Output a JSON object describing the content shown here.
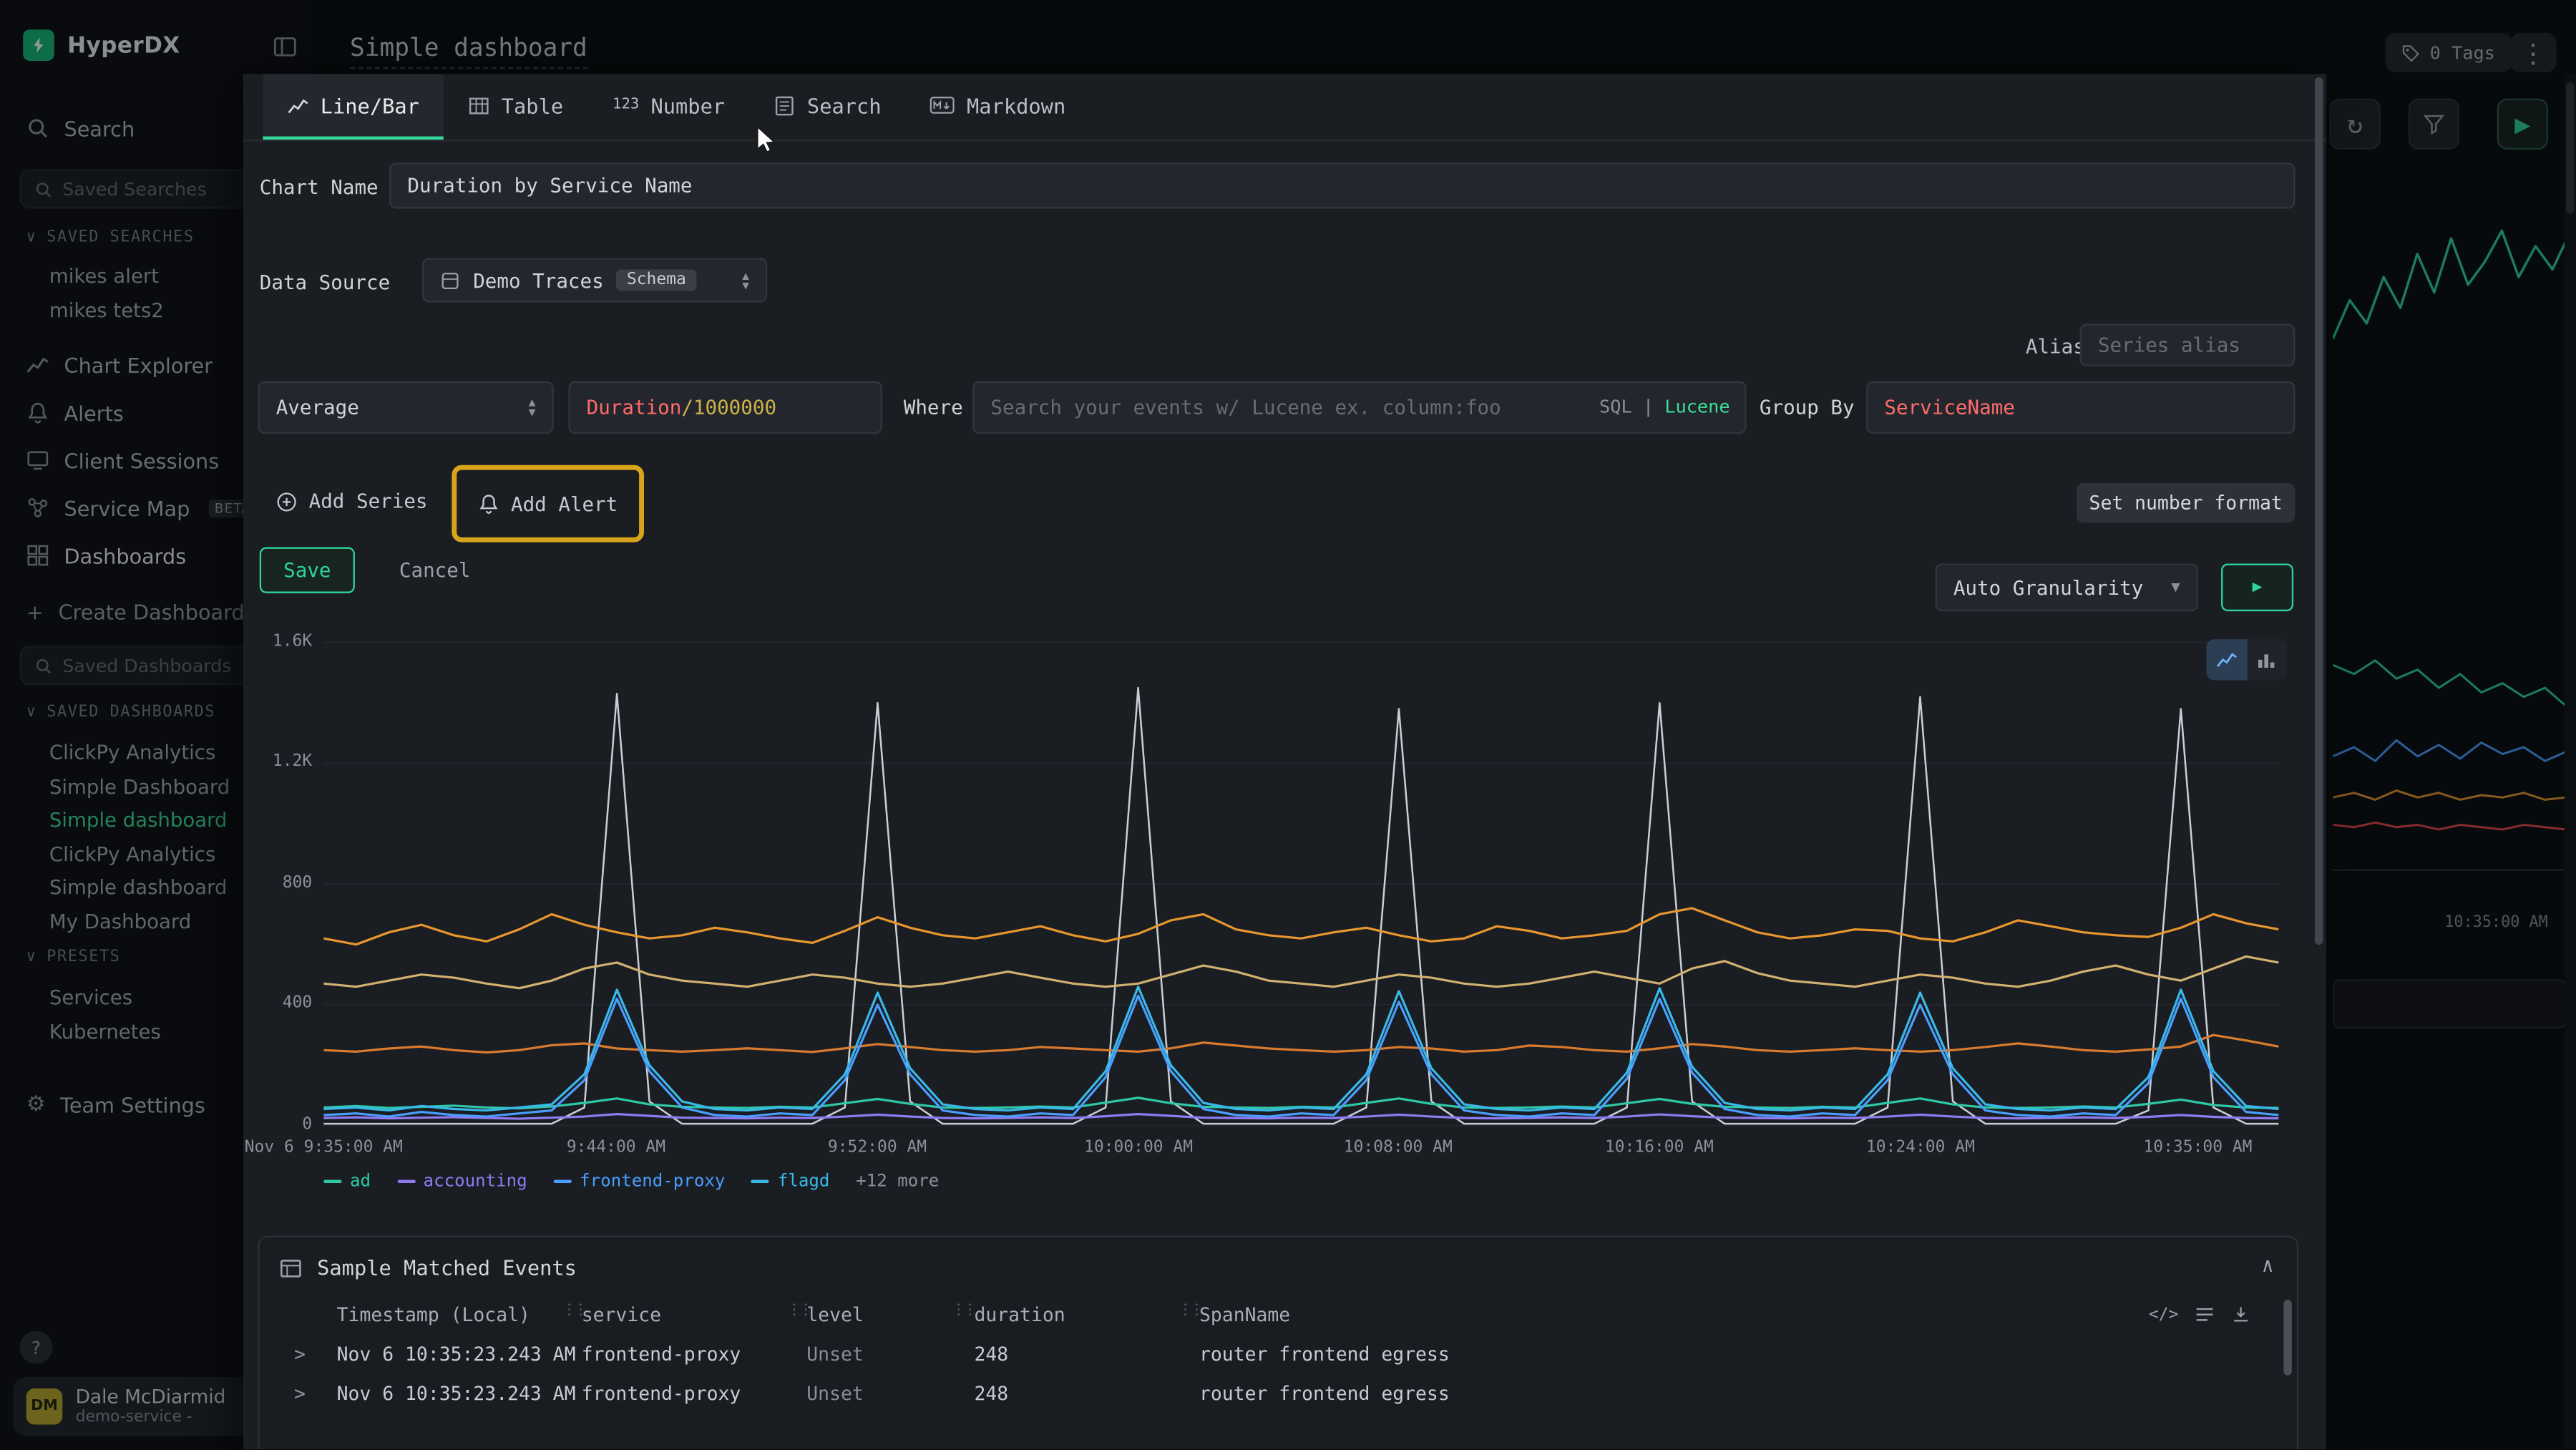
{
  "app": {
    "brand": "HyperDX",
    "title": "Simple dashboard"
  },
  "topbar": {
    "tags": "0 Tags"
  },
  "sidebar": {
    "search": "Search",
    "saved_search_placeholder": "Saved Searches",
    "saved_searches_header": "SAVED SEARCHES",
    "saved_searches": [
      "mikes alert",
      "mikes tets2"
    ],
    "chart_explorer": "Chart Explorer",
    "alerts": "Alerts",
    "client_sessions": "Client Sessions",
    "service_map": "Service Map",
    "beta": "BETA",
    "dashboards": "Dashboards",
    "create_dashboard": "Create Dashboard",
    "saved_dashboards_placeholder": "Saved Dashboards",
    "saved_dashboards_header": "SAVED DASHBOARDS",
    "saved_dashboards": [
      "ClickPy Analytics",
      "Simple Dashboard",
      "Simple dashboard",
      "ClickPy Analytics",
      "Simple dashboard",
      "My Dashboard"
    ],
    "presets_header": "PRESETS",
    "presets": [
      "Services",
      "Kubernetes"
    ],
    "team_settings": "Team Settings",
    "help": "?",
    "user": {
      "initials": "DM",
      "name": "Dale McDiarmid",
      "subtitle": "demo-service -"
    }
  },
  "editor": {
    "tabs": [
      {
        "label": "Line/Bar"
      },
      {
        "label": "Table"
      },
      {
        "label": "Number",
        "icon": "123"
      },
      {
        "label": "Search"
      },
      {
        "label": "Markdown"
      }
    ],
    "chart_name_label": "Chart Name",
    "chart_name_value": "Duration by Service Name",
    "data_source_label": "Data Source",
    "data_source_value": "Demo Traces",
    "schema_badge": "Schema",
    "alias_label": "Alias",
    "alias_placeholder": "Series alias",
    "aggregation_value": "Average",
    "field_primary": "Duration",
    "field_secondary": "/1000000",
    "where_label": "Where",
    "where_placeholder": "Search your events w/ Lucene ex. column:foo",
    "sql": "SQL",
    "divider": "|",
    "lucene": "Lucene",
    "group_by_label": "Group By",
    "group_by_value": "ServiceName",
    "add_series": "Add Series",
    "add_alert": "Add Alert",
    "set_number_format": "Set number format",
    "save": "Save",
    "cancel": "Cancel",
    "granularity": "Auto Granularity"
  },
  "chart_data": {
    "type": "line",
    "title": "Duration by Service Name",
    "ylim": [
      0,
      1600
    ],
    "yticks": [
      0,
      400,
      800,
      1200,
      1600
    ],
    "ytick_labels": [
      "0",
      "400",
      "800",
      "1.2K",
      "1.6K"
    ],
    "x_tick_minutes": [
      0,
      9,
      17,
      25,
      33,
      41,
      49,
      60
    ],
    "x_labels": [
      "Nov 6 9:35:00 AM",
      "9:44:00 AM",
      "9:52:00 AM",
      "10:00:00 AM",
      "10:08:00 AM",
      "10:16:00 AM",
      "10:24:00 AM",
      "10:35:00 AM"
    ],
    "legend": [
      {
        "label": "ad",
        "color": "#2ec8a6"
      },
      {
        "label": "accounting",
        "color": "#8f7bf0"
      },
      {
        "label": "frontend-proxy",
        "color": "#4a9eff"
      },
      {
        "label": "flagd",
        "color": "#39b9e8"
      },
      {
        "label": "+12 more",
        "color": ""
      }
    ],
    "series": [
      {
        "name": "",
        "color": "#c9ced4",
        "values": [
          6,
          6,
          6,
          6,
          6,
          6,
          6,
          6,
          60,
          1430,
          80,
          6,
          6,
          6,
          6,
          6,
          60,
          1400,
          80,
          6,
          6,
          6,
          6,
          6,
          60,
          1450,
          80,
          6,
          6,
          6,
          6,
          6,
          60,
          1380,
          80,
          6,
          6,
          6,
          6,
          6,
          60,
          1400,
          80,
          6,
          6,
          6,
          6,
          6,
          60,
          1420,
          80,
          6,
          6,
          6,
          6,
          6,
          50,
          1380,
          60,
          6,
          6
        ]
      },
      {
        "name": "",
        "color": "#e8962e",
        "values": [
          620,
          600,
          640,
          665,
          630,
          610,
          650,
          700,
          665,
          640,
          620,
          630,
          655,
          640,
          620,
          605,
          645,
          690,
          655,
          630,
          620,
          640,
          660,
          630,
          610,
          635,
          680,
          700,
          650,
          630,
          620,
          640,
          655,
          630,
          610,
          620,
          660,
          645,
          620,
          630,
          645,
          700,
          720,
          680,
          640,
          620,
          630,
          650,
          645,
          620,
          610,
          640,
          680,
          660,
          640,
          630,
          625,
          655,
          700,
          670,
          650
        ]
      },
      {
        "name": "",
        "color": "#d2b070",
        "values": [
          470,
          460,
          480,
          500,
          490,
          470,
          455,
          480,
          520,
          540,
          500,
          480,
          470,
          460,
          480,
          500,
          490,
          470,
          460,
          470,
          490,
          510,
          490,
          470,
          460,
          470,
          500,
          530,
          510,
          480,
          470,
          460,
          480,
          500,
          490,
          470,
          460,
          470,
          490,
          510,
          490,
          470,
          520,
          545,
          505,
          480,
          470,
          460,
          480,
          500,
          490,
          470,
          460,
          480,
          510,
          530,
          500,
          480,
          520,
          560,
          540
        ]
      },
      {
        "name": "",
        "color": "#d97b2e",
        "values": [
          250,
          245,
          255,
          262,
          250,
          242,
          250,
          266,
          272,
          255,
          250,
          245,
          250,
          256,
          250,
          244,
          256,
          270,
          260,
          250,
          245,
          250,
          260,
          255,
          250,
          245,
          256,
          275,
          265,
          255,
          250,
          245,
          250,
          260,
          255,
          245,
          250,
          265,
          260,
          250,
          245,
          256,
          270,
          262,
          250,
          245,
          250,
          256,
          250,
          245,
          250,
          260,
          272,
          262,
          250,
          245,
          252,
          262,
          300,
          282,
          262
        ]
      },
      {
        "name": "ad",
        "color": "#2ec8a6",
        "values": [
          60,
          65,
          58,
          62,
          66,
          60,
          57,
          63,
          75,
          90,
          70,
          62,
          60,
          58,
          62,
          60,
          74,
          88,
          72,
          60,
          58,
          60,
          63,
          60,
          76,
          92,
          74,
          62,
          60,
          58,
          62,
          60,
          75,
          90,
          72,
          60,
          58,
          60,
          63,
          60,
          74,
          88,
          72,
          62,
          60,
          58,
          62,
          60,
          75,
          90,
          70,
          60,
          58,
          60,
          63,
          60,
          72,
          86,
          68,
          60,
          58
        ]
      },
      {
        "name": "accounting",
        "color": "#8f7bf0",
        "values": [
          25,
          27,
          24,
          26,
          28,
          25,
          23,
          26,
          30,
          38,
          32,
          26,
          25,
          24,
          26,
          25,
          30,
          36,
          30,
          25,
          24,
          25,
          27,
          25,
          31,
          38,
          32,
          26,
          25,
          24,
          26,
          25,
          30,
          36,
          30,
          25,
          24,
          25,
          27,
          25,
          30,
          37,
          31,
          26,
          25,
          24,
          26,
          25,
          30,
          36,
          30,
          25,
          24,
          25,
          27,
          25,
          29,
          35,
          29,
          25,
          24
        ]
      },
      {
        "name": "frontend-proxy",
        "color": "#4a9eff",
        "values": [
          35,
          40,
          30,
          45,
          35,
          30,
          40,
          50,
          150,
          420,
          180,
          60,
          35,
          30,
          40,
          35,
          150,
          400,
          170,
          50,
          35,
          30,
          40,
          35,
          160,
          430,
          180,
          55,
          35,
          30,
          40,
          35,
          150,
          410,
          170,
          50,
          35,
          30,
          40,
          35,
          155,
          420,
          175,
          55,
          35,
          30,
          40,
          35,
          150,
          400,
          170,
          50,
          35,
          30,
          40,
          35,
          140,
          420,
          160,
          45,
          35
        ]
      },
      {
        "name": "flagd",
        "color": "#39b9e8",
        "values": [
          55,
          60,
          50,
          65,
          55,
          50,
          60,
          70,
          170,
          450,
          200,
          80,
          55,
          50,
          60,
          55,
          170,
          440,
          190,
          70,
          55,
          50,
          60,
          55,
          180,
          460,
          200,
          75,
          55,
          50,
          60,
          55,
          170,
          445,
          190,
          70,
          55,
          50,
          60,
          55,
          175,
          455,
          195,
          75,
          55,
          50,
          60,
          55,
          170,
          440,
          190,
          70,
          55,
          50,
          60,
          55,
          160,
          450,
          180,
          65,
          55
        ]
      }
    ]
  },
  "events": {
    "title": "Sample Matched Events",
    "columns": [
      "Timestamp (Local)",
      "service",
      "level",
      "duration",
      "SpanName"
    ],
    "rows": [
      [
        "Nov 6 10:35:23.243 AM",
        "frontend-proxy",
        "Unset",
        "248",
        "router frontend egress"
      ],
      [
        "Nov 6 10:35:23.243 AM",
        "frontend-proxy",
        "Unset",
        "248",
        "router frontend egress"
      ]
    ]
  },
  "bg": {
    "time_label": "10:35:00 AM",
    "spark_green": [
      20,
      45,
      30,
      60,
      40,
      75,
      50,
      85,
      55,
      70,
      90,
      60,
      80,
      65,
      88
    ],
    "spark_multi": {
      "green": [
        88,
        84,
        90,
        82,
        86,
        78,
        84,
        76,
        80,
        74,
        78,
        70
      ],
      "blue": [
        48,
        52,
        46,
        55,
        48,
        53,
        47,
        54,
        49,
        52,
        46,
        50
      ],
      "orange": [
        30,
        32,
        29,
        33,
        30,
        32,
        29,
        31,
        30,
        32,
        29,
        30
      ],
      "red": [
        18,
        17,
        19,
        17,
        18,
        16,
        18,
        17,
        16,
        18,
        17,
        16
      ]
    }
  }
}
